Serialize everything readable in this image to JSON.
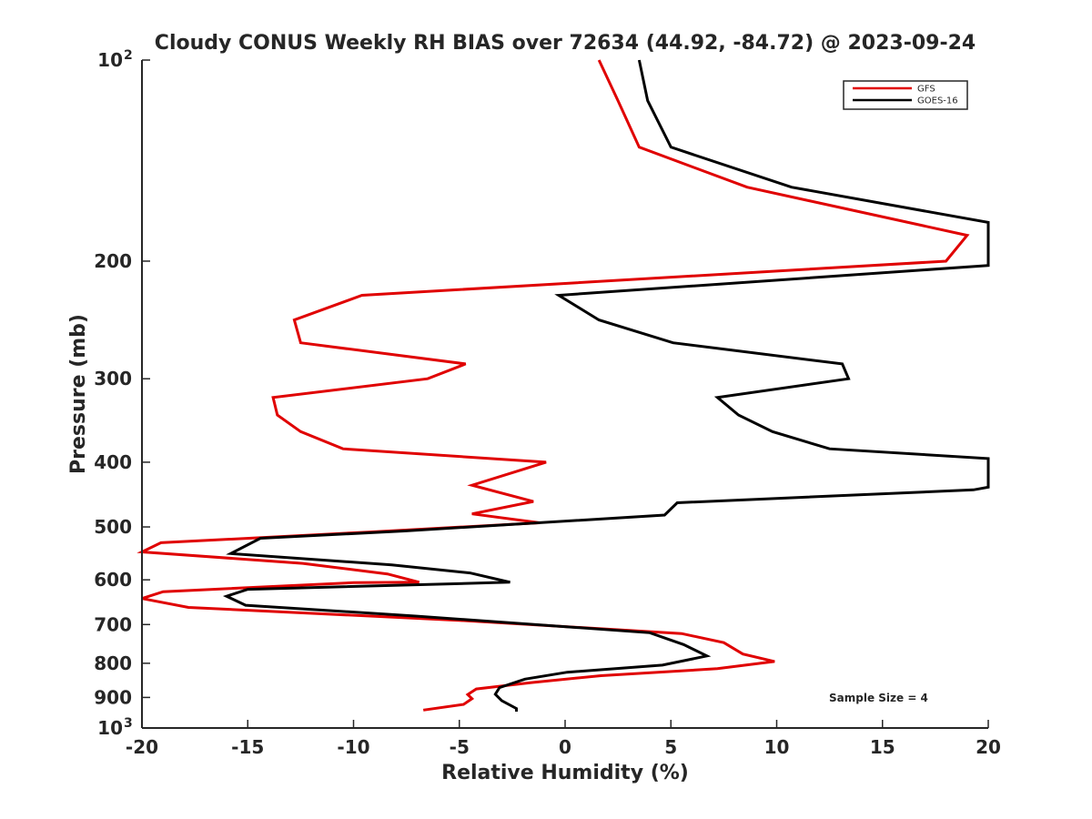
{
  "chart_data": {
    "type": "line",
    "title": "Cloudy CONUS Weekly RH BIAS over 72634 (44.92, -84.72) @ 2023-09-24",
    "xlabel": "Relative Humidity (%)",
    "ylabel": "Pressure (mb)",
    "xlim": [
      -20,
      20
    ],
    "ylim": [
      100,
      1000
    ],
    "y_scale": "log",
    "y_reversed": true,
    "x_ticks": [
      "-20",
      "-15",
      "-10",
      "-5",
      "0",
      "5",
      "10",
      "15",
      "20"
    ],
    "x_tick_values": [
      -20,
      -15,
      -10,
      -5,
      0,
      5,
      10,
      15,
      20
    ],
    "y_ticks": [
      {
        "value": 100,
        "base": "10",
        "exp": "2"
      },
      {
        "value": 200,
        "base": "200",
        "exp": ""
      },
      {
        "value": 300,
        "base": "300",
        "exp": ""
      },
      {
        "value": 400,
        "base": "400",
        "exp": ""
      },
      {
        "value": 500,
        "base": "500",
        "exp": ""
      },
      {
        "value": 600,
        "base": "600",
        "exp": ""
      },
      {
        "value": 700,
        "base": "700",
        "exp": ""
      },
      {
        "value": 800,
        "base": "800",
        "exp": ""
      },
      {
        "value": 900,
        "base": "900",
        "exp": ""
      },
      {
        "value": 1000,
        "base": "10",
        "exp": "3"
      }
    ],
    "grid": false,
    "legend": "top-right",
    "annotation": "Sample Size = 4",
    "series": [
      {
        "name": "GFS",
        "color": "#e00000",
        "points": [
          [
            1.6,
            100
          ],
          [
            2.5,
            115
          ],
          [
            3.5,
            135
          ],
          [
            8.6,
            155
          ],
          [
            19.0,
            183
          ],
          [
            18.0,
            200
          ],
          [
            -9.6,
            225
          ],
          [
            -12.8,
            245
          ],
          [
            -12.5,
            265
          ],
          [
            -4.7,
            285
          ],
          [
            -6.5,
            300
          ],
          [
            -13.8,
            320
          ],
          [
            -13.6,
            340
          ],
          [
            -12.5,
            360
          ],
          [
            -10.5,
            382
          ],
          [
            -0.9,
            400
          ],
          [
            -4.4,
            433
          ],
          [
            -1.5,
            458
          ],
          [
            -4.4,
            478
          ],
          [
            -1.2,
            493
          ],
          [
            -9.3,
            509
          ],
          [
            -19.1,
            528
          ],
          [
            -20.0,
            545
          ],
          [
            -12.4,
            567
          ],
          [
            -8.4,
            588
          ],
          [
            -6.9,
            605
          ],
          [
            -10.0,
            606
          ],
          [
            -19.0,
            625
          ],
          [
            -20.0,
            640
          ],
          [
            -17.8,
            660
          ],
          [
            -5.0,
            690
          ],
          [
            5.5,
            722
          ],
          [
            7.5,
            745
          ],
          [
            8.4,
            775
          ],
          [
            9.9,
            795
          ],
          [
            7.2,
            815
          ],
          [
            1.7,
            835
          ],
          [
            -1.6,
            855
          ],
          [
            -4.2,
            874
          ],
          [
            -4.6,
            891
          ],
          [
            -4.4,
            904
          ],
          [
            -4.8,
            922
          ],
          [
            -6.7,
            940
          ]
        ]
      },
      {
        "name": "GOES-16",
        "color": "#000000",
        "points": [
          [
            3.5,
            100
          ],
          [
            3.9,
            115
          ],
          [
            5.0,
            135
          ],
          [
            10.7,
            155
          ],
          [
            20.0,
            175
          ],
          [
            20.0,
            203
          ],
          [
            -0.3,
            225
          ],
          [
            1.6,
            245
          ],
          [
            5.1,
            265
          ],
          [
            13.1,
            285
          ],
          [
            13.4,
            300
          ],
          [
            7.2,
            320
          ],
          [
            8.2,
            340
          ],
          [
            9.8,
            360
          ],
          [
            12.5,
            382
          ],
          [
            20.0,
            395
          ],
          [
            20.0,
            436
          ],
          [
            19.3,
            440
          ],
          [
            5.3,
            460
          ],
          [
            4.7,
            480
          ],
          [
            -7.6,
            507
          ],
          [
            -14.4,
            520
          ],
          [
            -15.8,
            548
          ],
          [
            -8.2,
            570
          ],
          [
            -4.5,
            586
          ],
          [
            -2.6,
            605
          ],
          [
            -15.0,
            620
          ],
          [
            -16.0,
            635
          ],
          [
            -15.1,
            655
          ],
          [
            -7.0,
            680
          ],
          [
            4.0,
            720
          ],
          [
            5.6,
            750
          ],
          [
            6.7,
            780
          ],
          [
            4.6,
            805
          ],
          [
            0.1,
            825
          ],
          [
            -1.9,
            845
          ],
          [
            -3.1,
            870
          ],
          [
            -3.3,
            890
          ],
          [
            -3.0,
            910
          ],
          [
            -2.3,
            935
          ],
          [
            -2.3,
            945
          ]
        ]
      }
    ]
  }
}
